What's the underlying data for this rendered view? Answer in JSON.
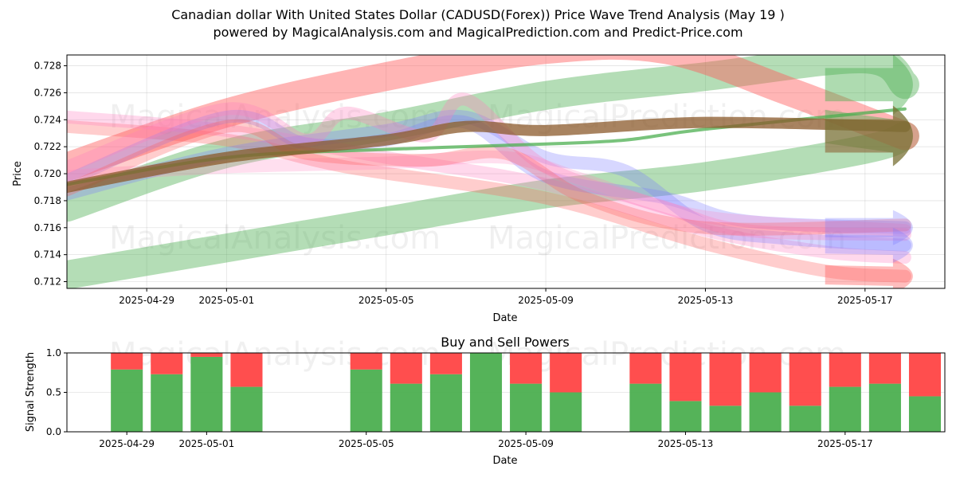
{
  "header": {
    "title_line1": "Canadian dollar With United States Dollar (CADUSD(Forex)) Price Wave Trend Analysis (May 19 )",
    "title_line2": "powered by MagicalAnalysis.com and MagicalPrediction.com and Predict-Price.com"
  },
  "watermarks": [
    "MagicalAnalysis.com",
    "MagicalPrediction.com"
  ],
  "chart_data": [
    {
      "type": "line",
      "chart": "price-wave",
      "xlabel": "Date",
      "ylabel": "Price",
      "x_ticks": [
        "2025-04-29",
        "2025-05-01",
        "2025-05-05",
        "2025-05-09",
        "2025-05-13",
        "2025-05-17"
      ],
      "y_ticks": [
        0.712,
        0.714,
        0.716,
        0.718,
        0.72,
        0.722,
        0.724,
        0.726,
        0.728
      ],
      "xlim": [
        "2025-04-27T00:00",
        "2025-05-19T00:00"
      ],
      "ylim": [
        0.7115,
        0.7288
      ],
      "grid": true,
      "colors": {
        "green": "#4CAF50",
        "red": "#FF5A5A",
        "blue": "#7A7AFF",
        "pink": "#FF7FBF",
        "brown": "#8B5A2B"
      },
      "bands": [
        {
          "color": "green",
          "opacity": 0.42,
          "points": [
            [
              "2025-04-27",
              0.7175
            ],
            [
              "2025-05-01",
              0.7215
            ],
            [
              "2025-05-05",
              0.7235
            ],
            [
              "2025-05-09",
              0.7258
            ],
            [
              "2025-05-13",
              0.7272
            ],
            [
              "2025-05-17",
              0.7285
            ],
            [
              "2025-05-18",
              0.7266
            ]
          ]
        },
        {
          "color": "green",
          "opacity": 0.42,
          "points": [
            [
              "2025-04-27",
              0.7125
            ],
            [
              "2025-05-01",
              0.7145
            ],
            [
              "2025-05-05",
              0.7165
            ],
            [
              "2025-05-09",
              0.7185
            ],
            [
              "2025-05-13",
              0.7198
            ],
            [
              "2025-05-17",
              0.7218
            ],
            [
              "2025-05-18",
              0.7228
            ]
          ]
        },
        {
          "color": "red",
          "opacity": 0.45,
          "points": [
            [
              "2025-04-27",
              0.7205
            ],
            [
              "2025-05-01",
              0.7245
            ],
            [
              "2025-05-05",
              0.7272
            ],
            [
              "2025-05-09",
              0.7292
            ],
            [
              "2025-05-12",
              0.7292
            ],
            [
              "2025-05-15",
              0.7262
            ],
            [
              "2025-05-18",
              0.7228
            ]
          ]
        },
        {
          "color": "red",
          "opacity": 0.3,
          "points": [
            [
              "2025-04-27",
              0.7235
            ],
            [
              "2025-05-01",
              0.7225
            ],
            [
              "2025-05-04",
              0.7205
            ],
            [
              "2025-05-09",
              0.7182
            ],
            [
              "2025-05-13",
              0.7148
            ],
            [
              "2025-05-16",
              0.7128
            ],
            [
              "2025-05-18",
              0.7124
            ]
          ]
        },
        {
          "color": "pink",
          "opacity": 0.3,
          "points": [
            [
              "2025-04-27",
              0.7242
            ],
            [
              "2025-05-01",
              0.7232
            ],
            [
              "2025-05-05",
              0.7212
            ],
            [
              "2025-05-09",
              0.7192
            ],
            [
              "2025-05-13",
              0.7158
            ],
            [
              "2025-05-16",
              0.7142
            ],
            [
              "2025-05-18",
              0.7138
            ]
          ]
        },
        {
          "color": "blue",
          "opacity": 0.3,
          "points": [
            [
              "2025-04-27",
              0.7185
            ],
            [
              "2025-05-01",
              0.7215
            ],
            [
              "2025-05-05",
              0.7232
            ],
            [
              "2025-05-07",
              0.7242
            ],
            [
              "2025-05-09",
              0.7212
            ],
            [
              "2025-05-11",
              0.7202
            ],
            [
              "2025-05-13",
              0.7162
            ],
            [
              "2025-05-15",
              0.7152
            ],
            [
              "2025-05-18",
              0.7147
            ]
          ]
        },
        {
          "color": "blue",
          "opacity": 0.3,
          "points": [
            [
              "2025-04-27",
              0.7195
            ],
            [
              "2025-05-01",
              0.7242
            ],
            [
              "2025-05-03",
              0.7222
            ],
            [
              "2025-05-05",
              0.7225
            ],
            [
              "2025-05-07",
              0.7238
            ],
            [
              "2025-05-09",
              0.7198
            ],
            [
              "2025-05-12",
              0.7182
            ],
            [
              "2025-05-14",
              0.7165
            ],
            [
              "2025-05-18",
              0.716
            ]
          ]
        },
        {
          "color": "pink",
          "opacity": 0.32,
          "points": [
            [
              "2025-04-27",
              0.7205
            ],
            [
              "2025-05-01",
              0.7248
            ],
            [
              "2025-05-03",
              0.7225
            ],
            [
              "2025-05-04",
              0.7245
            ],
            [
              "2025-05-06",
              0.7228
            ],
            [
              "2025-05-07",
              0.7255
            ],
            [
              "2025-05-09",
              0.7205
            ],
            [
              "2025-05-12",
              0.7175
            ],
            [
              "2025-05-14",
              0.7158
            ],
            [
              "2025-05-18",
              0.7155
            ]
          ]
        },
        {
          "color": "pink",
          "opacity": 0.25,
          "points": [
            [
              "2025-04-27",
              0.7198
            ],
            [
              "2025-05-01",
              0.7205
            ],
            [
              "2025-05-05",
              0.7208
            ],
            [
              "2025-05-08",
              0.7212
            ],
            [
              "2025-05-10",
              0.7195
            ],
            [
              "2025-05-13",
              0.7168
            ],
            [
              "2025-05-18",
              0.7158
            ]
          ]
        },
        {
          "color": "red",
          "opacity": 0.3,
          "points": [
            [
              "2025-04-27",
              0.7188
            ],
            [
              "2025-05-01",
              0.7235
            ],
            [
              "2025-05-03",
              0.7215
            ],
            [
              "2025-05-06",
              0.721
            ],
            [
              "2025-05-08",
              0.7215
            ],
            [
              "2025-05-10",
              0.7182
            ],
            [
              "2025-05-13",
              0.716
            ],
            [
              "2025-05-18",
              0.7162
            ]
          ]
        }
      ],
      "lines": [
        {
          "color": "green",
          "points": [
            [
              "2025-04-27",
              0.7192
            ],
            [
              "2025-05-01",
              0.7212
            ],
            [
              "2025-05-05",
              0.7218
            ],
            [
              "2025-05-09",
              0.7222
            ],
            [
              "2025-05-11",
              0.7225
            ],
            [
              "2025-05-13",
              0.7233
            ],
            [
              "2025-05-18",
              0.7248
            ]
          ]
        },
        {
          "color": "brown",
          "points": [
            [
              "2025-04-27",
              0.719
            ],
            [
              "2025-05-01",
              0.7212
            ],
            [
              "2025-05-05",
              0.7225
            ],
            [
              "2025-05-07",
              0.7235
            ],
            [
              "2025-05-09",
              0.7232
            ],
            [
              "2025-05-13",
              0.7238
            ],
            [
              "2025-05-18",
              0.7235
            ]
          ]
        }
      ],
      "arrows": [
        {
          "color": "green",
          "opacity": 0.45,
          "from": [
            "2025-05-16",
            0.7266
          ],
          "to": [
            "2025-05-18",
            0.7266
          ]
        },
        {
          "color": "green",
          "opacity": 0.45,
          "from": [
            "2025-05-16",
            0.7235
          ],
          "to": [
            "2025-05-18",
            0.7228
          ]
        },
        {
          "color": "brown",
          "opacity": 0.55,
          "from": [
            "2025-05-16",
            0.7228
          ],
          "to": [
            "2025-05-18",
            0.7228
          ]
        },
        {
          "color": "red",
          "opacity": 0.4,
          "from": [
            "2025-05-16",
            0.7125
          ],
          "to": [
            "2025-05-18",
            0.7124
          ]
        },
        {
          "color": "blue",
          "opacity": 0.3,
          "from": [
            "2025-05-16",
            0.7148
          ],
          "to": [
            "2025-05-18",
            0.7147
          ]
        },
        {
          "color": "blue",
          "opacity": 0.3,
          "from": [
            "2025-05-16",
            0.716
          ],
          "to": [
            "2025-05-18",
            0.716
          ]
        }
      ]
    },
    {
      "type": "bar",
      "chart": "buy-sell-powers",
      "title": "Buy and Sell Powers",
      "xlabel": "Date",
      "ylabel": "Signal Strength",
      "x_ticks": [
        "2025-04-29",
        "2025-05-01",
        "2025-05-05",
        "2025-05-09",
        "2025-05-13",
        "2025-05-17"
      ],
      "y_ticks": [
        0.0,
        0.5,
        1.0
      ],
      "ylim": [
        0,
        1
      ],
      "xlim": [
        "2025-04-27T00:00",
        "2025-05-19T00:00"
      ],
      "colors": {
        "buy": "#4CAF50",
        "sell": "#FF4444"
      },
      "categories": [
        "2025-04-29",
        "2025-04-30",
        "2025-05-01",
        "2025-05-02",
        "2025-05-05",
        "2025-05-06",
        "2025-05-07",
        "2025-05-08",
        "2025-05-09",
        "2025-05-10",
        "2025-05-12",
        "2025-05-13",
        "2025-05-14",
        "2025-05-15",
        "2025-05-16",
        "2025-05-17",
        "2025-05-18",
        "2025-05-19"
      ],
      "series": [
        {
          "name": "buy",
          "values": [
            0.79,
            0.73,
            0.95,
            0.57,
            0.79,
            0.61,
            0.73,
            1.0,
            0.61,
            0.5,
            0.61,
            0.39,
            0.33,
            0.5,
            0.33,
            0.57,
            0.61,
            0.45
          ]
        },
        {
          "name": "sell",
          "values": [
            0.21,
            0.27,
            0.05,
            0.43,
            0.21,
            0.39,
            0.27,
            0.0,
            0.39,
            0.5,
            0.39,
            0.61,
            0.67,
            0.5,
            0.67,
            0.43,
            0.39,
            0.55
          ]
        }
      ]
    }
  ]
}
